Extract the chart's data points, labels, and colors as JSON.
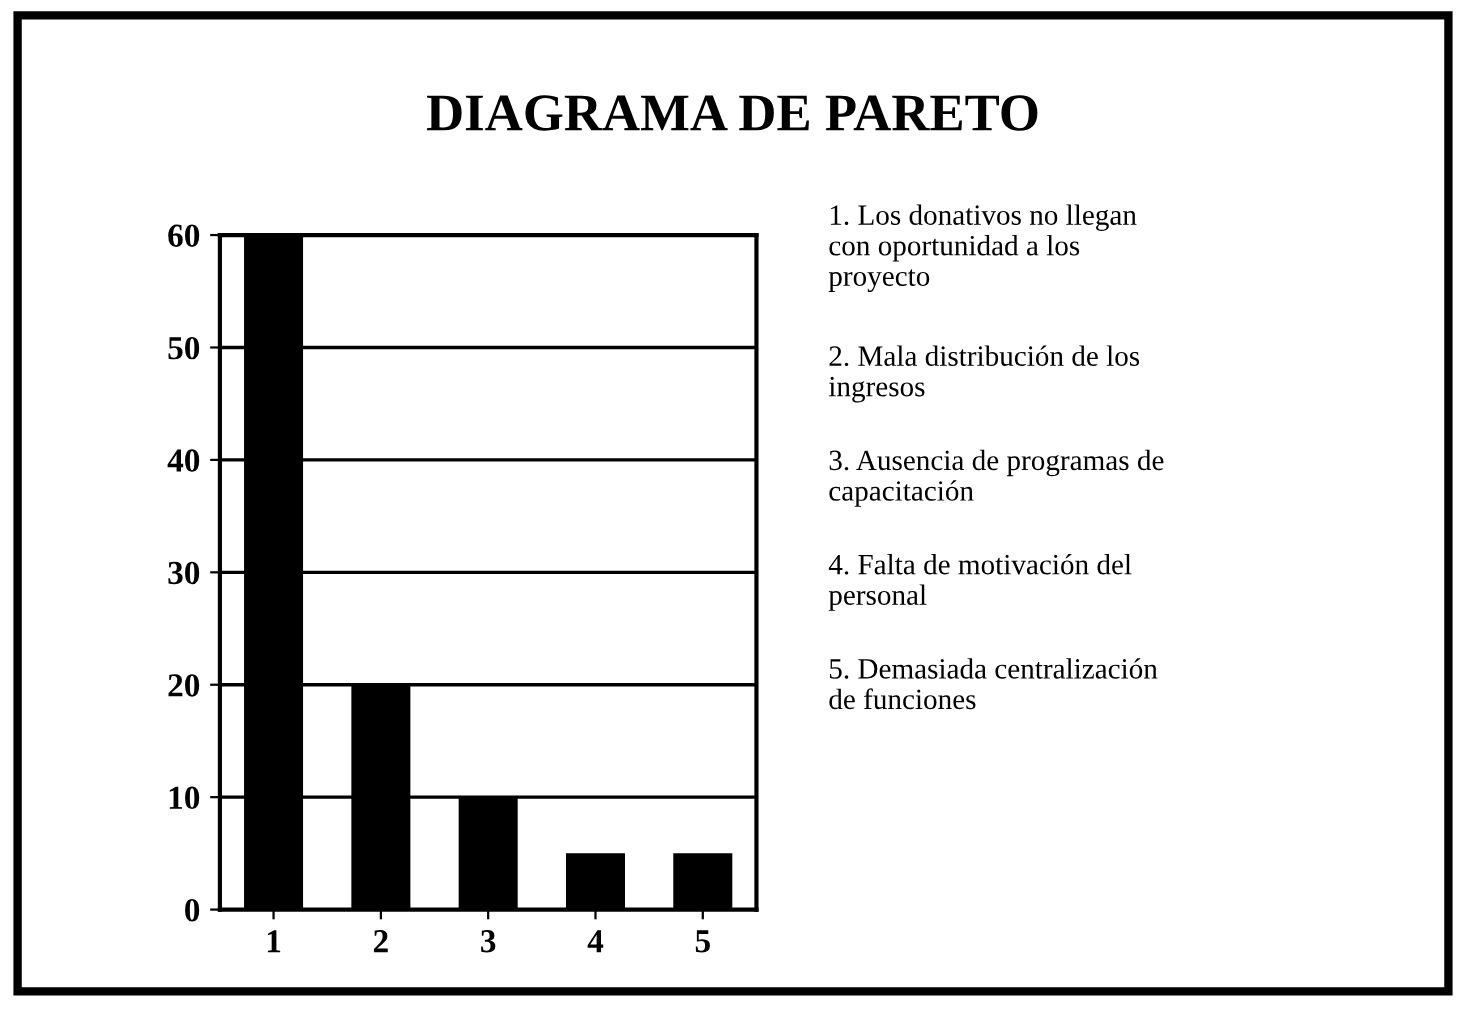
{
  "chart_data": {
    "type": "bar",
    "title": "DIAGRAMA DE PARETO",
    "categories": [
      "1",
      "2",
      "3",
      "4",
      "5"
    ],
    "values": [
      60,
      20,
      10,
      5,
      5
    ],
    "color": "#000000",
    "ylim": [
      0,
      60
    ],
    "yticks": [
      0,
      10,
      20,
      30,
      40,
      50,
      60
    ],
    "grid": "y",
    "legend": false,
    "annotations": [
      "1. Los donativos no llegan\ncon oportunidad a los\nproyecto",
      "2. Mala distribución de los\ningresos",
      "3. Ausencia de programas de\ncapacitación",
      "4. Falta de motivación del\npersonal",
      "5. Demasiada centralización\nde funciones"
    ]
  }
}
